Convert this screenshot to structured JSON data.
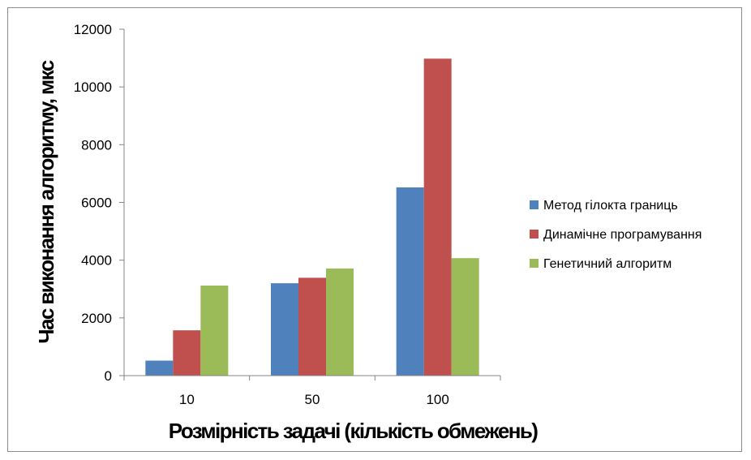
{
  "chart_data": {
    "type": "bar",
    "categories": [
      "10",
      "50",
      "100"
    ],
    "series": [
      {
        "name": "Метод гілокта границь",
        "values": [
          520,
          3200,
          6520
        ],
        "color": "#4f81bd"
      },
      {
        "name": "Динамічне програмування",
        "values": [
          1570,
          3390,
          10980
        ],
        "color": "#c0504d"
      },
      {
        "name": "Генетичний алгоритм",
        "values": [
          3120,
          3710,
          4070
        ],
        "color": "#9bbb59"
      }
    ],
    "title": "",
    "xlabel": "Розмірність задачі (кількість обмежень)",
    "ylabel": "Час виконання алгоритму, мкс",
    "ylim": [
      0,
      12000
    ],
    "yticks": [
      0,
      2000,
      4000,
      6000,
      8000,
      10000,
      12000
    ],
    "grid": false,
    "legend": "right"
  }
}
